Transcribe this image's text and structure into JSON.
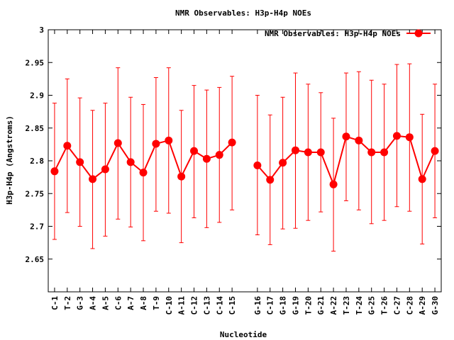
{
  "chart_data": {
    "type": "line",
    "title": "NMR Observables: H3p-H4p NOEs",
    "xlabel": "Nucleotide",
    "ylabel": "H3p-H4p (Angstroms)",
    "legend": {
      "label": "NMR Observables: H3p-H4p NOEs",
      "position": "top-right"
    },
    "ylim": [
      2.6,
      3.0
    ],
    "yticks": [
      "2.65",
      "2.7",
      "2.75",
      "2.8",
      "2.85",
      "2.9",
      "2.95",
      "3"
    ],
    "grid": false,
    "categories": [
      "C-1",
      "T-2",
      "G-3",
      "A-4",
      "A-5",
      "C-6",
      "A-7",
      "A-8",
      "T-9",
      "C-10",
      "A-11",
      "C-12",
      "C-13",
      "C-14",
      "C-15",
      "G-16",
      "C-17",
      "G-18",
      "G-19",
      "T-20",
      "G-21",
      "A-22",
      "T-23",
      "T-24",
      "G-25",
      "T-26",
      "C-27",
      "C-28",
      "A-29",
      "G-30"
    ],
    "x": [
      1,
      2,
      3,
      4,
      5,
      6,
      7,
      8,
      9,
      10,
      11,
      12,
      13,
      14,
      15,
      17,
      18,
      19,
      20,
      21,
      22,
      23,
      24,
      25,
      26,
      27,
      28,
      29,
      30,
      31
    ],
    "series": [
      {
        "name": "NMR Observables: H3p-H4p NOEs",
        "color": "#ff0000",
        "values": [
          2.784,
          2.823,
          2.798,
          2.772,
          2.787,
          2.827,
          2.798,
          2.782,
          2.826,
          2.831,
          2.776,
          2.815,
          2.803,
          2.809,
          2.828,
          2.793,
          2.771,
          2.797,
          2.816,
          2.813,
          2.813,
          2.764,
          2.837,
          2.831,
          2.813,
          2.813,
          2.838,
          2.836,
          2.772,
          2.815
        ],
        "err_low": [
          2.68,
          2.721,
          2.7,
          2.666,
          2.685,
          2.711,
          2.699,
          2.678,
          2.723,
          2.72,
          2.675,
          2.713,
          2.698,
          2.706,
          2.725,
          2.687,
          2.672,
          2.696,
          2.697,
          2.709,
          2.722,
          2.662,
          2.739,
          2.725,
          2.704,
          2.709,
          2.73,
          2.723,
          2.673,
          2.713
        ],
        "err_high": [
          2.888,
          2.925,
          2.896,
          2.877,
          2.888,
          2.942,
          2.897,
          2.886,
          2.927,
          2.942,
          2.877,
          2.915,
          2.908,
          2.912,
          2.929,
          2.9,
          2.87,
          2.897,
          2.934,
          2.917,
          2.904,
          2.865,
          2.934,
          2.936,
          2.923,
          2.917,
          2.947,
          2.948,
          2.871,
          2.917
        ]
      }
    ]
  }
}
